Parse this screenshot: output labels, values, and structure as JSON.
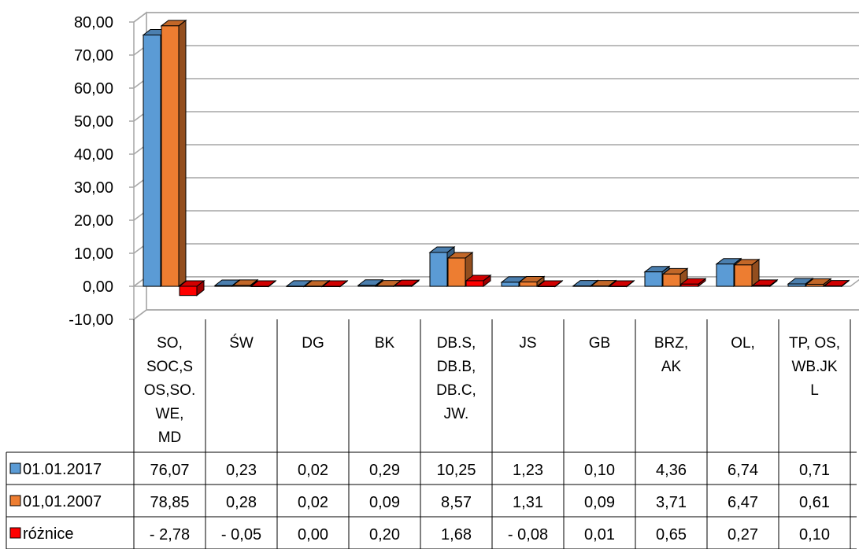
{
  "chart_data": {
    "type": "bar",
    "ylim": [
      -10,
      80
    ],
    "y_ticks": [
      "80,00",
      "70,00",
      "60,00",
      "50,00",
      "40,00",
      "30,00",
      "20,00",
      "10,00",
      "0,00",
      "-10,00"
    ],
    "categories": [
      [
        "SO,",
        "SOC,S",
        "OS,SO.",
        "WE,",
        "MD"
      ],
      [
        "ŚW"
      ],
      [
        "DG"
      ],
      [
        "BK"
      ],
      [
        "DB.S,",
        "DB.B,",
        "DB.C,",
        "JW."
      ],
      [
        "JS"
      ],
      [
        "GB"
      ],
      [
        "BRZ,",
        "AK"
      ],
      [
        "OL,"
      ],
      [
        "TP, OS,",
        "WB.JK",
        "L"
      ]
    ],
    "series": [
      {
        "name": "01.01.2017",
        "color": "#5b9bd5",
        "values": [
          76.07,
          0.23,
          0.02,
          0.29,
          10.25,
          1.23,
          0.1,
          4.36,
          6.74,
          0.71
        ],
        "labels": [
          "76,07",
          "0,23",
          "0,02",
          "0,29",
          "10,25",
          "1,23",
          "0,10",
          "4,36",
          "6,74",
          "0,71"
        ]
      },
      {
        "name": "01,01.2007",
        "color": "#ed7d31",
        "values": [
          78.85,
          0.28,
          0.02,
          0.09,
          8.57,
          1.31,
          0.09,
          3.71,
          6.47,
          0.61
        ],
        "labels": [
          "78,85",
          "0,28",
          "0,02",
          "0,09",
          "8,57",
          "1,31",
          "0,09",
          "3,71",
          "6,47",
          "0,61"
        ]
      },
      {
        "name": "różnice",
        "color": "#ff0000",
        "values": [
          -2.78,
          -0.05,
          0.0,
          0.2,
          1.68,
          -0.08,
          0.01,
          0.65,
          0.27,
          0.1
        ],
        "labels": [
          "- 2,78",
          "- 0,05",
          "0,00",
          "0,20",
          "1,68",
          "- 0,08",
          "0,01",
          "0,65",
          "0,27",
          "0,10"
        ]
      }
    ],
    "grid": true,
    "legend": "data-table"
  }
}
